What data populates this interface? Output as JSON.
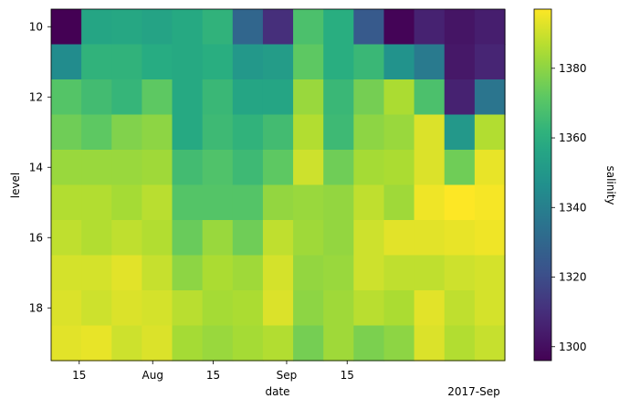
{
  "chart_data": {
    "type": "heatmap",
    "title": "",
    "xlabel": "date",
    "ylabel": "level",
    "colorbar_label": "salinity",
    "colormap": "viridis",
    "vmin": 1296,
    "vmax": 1397,
    "x_categories": [
      "2017-07-12",
      "2017-07-19",
      "2017-07-26",
      "2017-08-02",
      "2017-08-09",
      "2017-08-16",
      "2017-08-23",
      "2017-08-30",
      "2017-09-06",
      "2017-09-13",
      "2017-09-20",
      "2017-09-27",
      "2017-10-04",
      "2017-10-11",
      "2017-10-18"
    ],
    "y_categories": [
      10,
      11,
      12,
      13,
      14,
      15,
      16,
      17,
      18,
      19
    ],
    "values": [
      [
        1296,
        1356,
        1357,
        1355,
        1358,
        1362,
        1330,
        1310,
        1368,
        1360,
        1325,
        1297,
        1306,
        1302,
        1305
      ],
      [
        1345,
        1362,
        1362,
        1359,
        1358,
        1360,
        1350,
        1352,
        1372,
        1360,
        1364,
        1348,
        1338,
        1303,
        1307
      ],
      [
        1370,
        1366,
        1363,
        1372,
        1358,
        1364,
        1356,
        1356,
        1382,
        1364,
        1376,
        1385,
        1368,
        1306,
        1336
      ],
      [
        1375,
        1372,
        1378,
        1380,
        1358,
        1365,
        1362,
        1366,
        1386,
        1365,
        1380,
        1382,
        1392,
        1350,
        1386
      ],
      [
        1382,
        1382,
        1382,
        1383,
        1366,
        1369,
        1365,
        1372,
        1390,
        1375,
        1384,
        1385,
        1392,
        1375,
        1394
      ],
      [
        1386,
        1386,
        1384,
        1387,
        1370,
        1370,
        1370,
        1381,
        1382,
        1381,
        1388,
        1383,
        1395,
        1397,
        1396
      ],
      [
        1388,
        1386,
        1388,
        1386,
        1374,
        1382,
        1375,
        1388,
        1383,
        1381,
        1390,
        1393,
        1393,
        1394,
        1395
      ],
      [
        1391,
        1391,
        1393,
        1389,
        1380,
        1385,
        1383,
        1391,
        1381,
        1382,
        1390,
        1388,
        1388,
        1390,
        1391
      ],
      [
        1392,
        1390,
        1392,
        1391,
        1387,
        1384,
        1385,
        1392,
        1380,
        1383,
        1387,
        1385,
        1393,
        1388,
        1391
      ],
      [
        1393,
        1394,
        1390,
        1392,
        1384,
        1382,
        1384,
        1386,
        1376,
        1383,
        1377,
        1380,
        1392,
        1386,
        1389
      ]
    ],
    "x_ticks": [
      {
        "value": "2017-07-15",
        "label": "15"
      },
      {
        "value": "2017-08-01",
        "label": "Aug"
      },
      {
        "value": "2017-08-15",
        "label": "15"
      },
      {
        "value": "2017-09-01",
        "label": "Sep"
      },
      {
        "value": "2017-09-15",
        "label": "15"
      }
    ],
    "x_offset_label": "2017-Sep",
    "y_ticks": [
      10,
      12,
      14,
      16,
      18
    ],
    "colorbar_ticks": [
      1300,
      1320,
      1340,
      1360,
      1380
    ]
  }
}
